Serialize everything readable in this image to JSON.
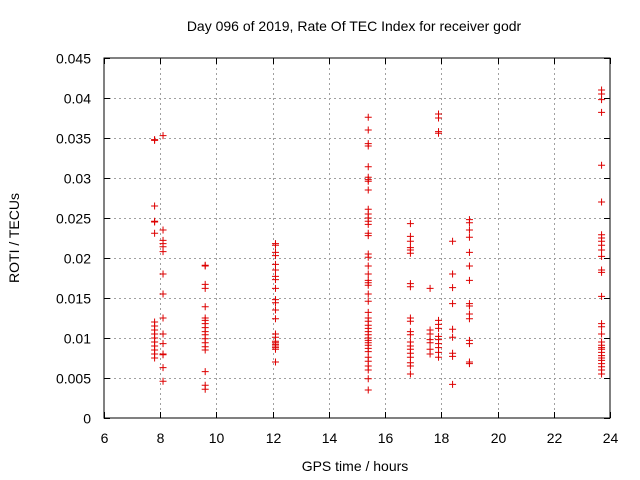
{
  "chart_data": {
    "type": "scatter",
    "title": "Day 096 of 2019, Rate Of TEC Index for receiver godr",
    "xlabel": "GPS time / hours",
    "ylabel": "ROTI / TECUs",
    "xlim": [
      6,
      24
    ],
    "ylim": [
      0,
      0.045
    ],
    "grid": true,
    "marker": "+",
    "color": "#dd0000",
    "x_ticks": [
      "6",
      "8",
      "10",
      "12",
      "14",
      "16",
      "18",
      "20",
      "22",
      "24"
    ],
    "y_ticks": [
      "0",
      "0.005",
      "0.01",
      "0.015",
      "0.02",
      "0.025",
      "0.03",
      "0.035",
      "0.04",
      "0.045"
    ],
    "points": [
      [
        7.8,
        0.0348
      ],
      [
        7.8,
        0.0347
      ],
      [
        7.8,
        0.0265
      ],
      [
        7.8,
        0.0246
      ],
      [
        7.8,
        0.0245
      ],
      [
        7.8,
        0.0231
      ],
      [
        7.8,
        0.012
      ],
      [
        7.8,
        0.0115
      ],
      [
        7.8,
        0.011
      ],
      [
        7.8,
        0.0105
      ],
      [
        7.8,
        0.01
      ],
      [
        7.8,
        0.0095
      ],
      [
        7.8,
        0.009
      ],
      [
        7.8,
        0.0085
      ],
      [
        7.8,
        0.008
      ],
      [
        7.8,
        0.0075
      ],
      [
        8.1,
        0.0353
      ],
      [
        8.1,
        0.0235
      ],
      [
        8.1,
        0.0222
      ],
      [
        8.1,
        0.0218
      ],
      [
        8.1,
        0.0214
      ],
      [
        8.1,
        0.0208
      ],
      [
        8.1,
        0.018
      ],
      [
        8.1,
        0.0155
      ],
      [
        8.1,
        0.0125
      ],
      [
        8.1,
        0.0105
      ],
      [
        8.1,
        0.0093
      ],
      [
        8.1,
        0.008
      ],
      [
        8.1,
        0.0079
      ],
      [
        8.1,
        0.0063
      ],
      [
        8.1,
        0.0046
      ],
      [
        9.6,
        0.0191
      ],
      [
        9.6,
        0.019
      ],
      [
        9.6,
        0.0167
      ],
      [
        9.6,
        0.0162
      ],
      [
        9.6,
        0.0139
      ],
      [
        9.6,
        0.0125
      ],
      [
        9.6,
        0.0122
      ],
      [
        9.6,
        0.0118
      ],
      [
        9.6,
        0.0113
      ],
      [
        9.6,
        0.0108
      ],
      [
        9.6,
        0.0104
      ],
      [
        9.6,
        0.0099
      ],
      [
        9.6,
        0.0094
      ],
      [
        9.6,
        0.0089
      ],
      [
        9.6,
        0.0085
      ],
      [
        9.6,
        0.0058
      ],
      [
        9.6,
        0.0041
      ],
      [
        9.6,
        0.0036
      ],
      [
        12.1,
        0.0218
      ],
      [
        12.1,
        0.0216
      ],
      [
        12.1,
        0.0207
      ],
      [
        12.1,
        0.0203
      ],
      [
        12.1,
        0.0192
      ],
      [
        12.1,
        0.0185
      ],
      [
        12.1,
        0.0177
      ],
      [
        12.1,
        0.0173
      ],
      [
        12.1,
        0.0162
      ],
      [
        12.1,
        0.0148
      ],
      [
        12.1,
        0.0144
      ],
      [
        12.1,
        0.0135
      ],
      [
        12.1,
        0.0124
      ],
      [
        12.1,
        0.0105
      ],
      [
        12.1,
        0.0101
      ],
      [
        12.1,
        0.0096
      ],
      [
        12.1,
        0.0094
      ],
      [
        12.1,
        0.0092
      ],
      [
        12.1,
        0.009
      ],
      [
        12.1,
        0.0088
      ],
      [
        12.1,
        0.0086
      ],
      [
        12.1,
        0.007
      ],
      [
        15.4,
        0.0376
      ],
      [
        15.4,
        0.036
      ],
      [
        15.4,
        0.0343
      ],
      [
        15.4,
        0.034
      ],
      [
        15.4,
        0.0314
      ],
      [
        15.4,
        0.0301
      ],
      [
        15.4,
        0.0298
      ],
      [
        15.4,
        0.0296
      ],
      [
        15.4,
        0.0285
      ],
      [
        15.4,
        0.0261
      ],
      [
        15.4,
        0.0255
      ],
      [
        15.4,
        0.025
      ],
      [
        15.4,
        0.0246
      ],
      [
        15.4,
        0.0242
      ],
      [
        15.4,
        0.0231
      ],
      [
        15.4,
        0.0228
      ],
      [
        15.4,
        0.0205
      ],
      [
        15.4,
        0.0201
      ],
      [
        15.4,
        0.019
      ],
      [
        15.4,
        0.018
      ],
      [
        15.4,
        0.0172
      ],
      [
        15.4,
        0.0169
      ],
      [
        15.4,
        0.0166
      ],
      [
        15.4,
        0.0155
      ],
      [
        15.4,
        0.0146
      ],
      [
        15.4,
        0.0132
      ],
      [
        15.4,
        0.0125
      ],
      [
        15.4,
        0.0121
      ],
      [
        15.4,
        0.0116
      ],
      [
        15.4,
        0.0112
      ],
      [
        15.4,
        0.0108
      ],
      [
        15.4,
        0.0104
      ],
      [
        15.4,
        0.01
      ],
      [
        15.4,
        0.0097
      ],
      [
        15.4,
        0.0094
      ],
      [
        15.4,
        0.0091
      ],
      [
        15.4,
        0.0087
      ],
      [
        15.4,
        0.0083
      ],
      [
        15.4,
        0.0076
      ],
      [
        15.4,
        0.0071
      ],
      [
        15.4,
        0.0065
      ],
      [
        15.4,
        0.006
      ],
      [
        15.4,
        0.0049
      ],
      [
        15.4,
        0.0035
      ],
      [
        16.9,
        0.0243
      ],
      [
        16.9,
        0.0227
      ],
      [
        16.9,
        0.0221
      ],
      [
        16.9,
        0.0213
      ],
      [
        16.9,
        0.021
      ],
      [
        16.9,
        0.0206
      ],
      [
        16.9,
        0.0168
      ],
      [
        16.9,
        0.0164
      ],
      [
        16.9,
        0.0125
      ],
      [
        16.9,
        0.0121
      ],
      [
        16.9,
        0.0108
      ],
      [
        16.9,
        0.0104
      ],
      [
        16.9,
        0.0095
      ],
      [
        16.9,
        0.009
      ],
      [
        16.9,
        0.0086
      ],
      [
        16.9,
        0.0081
      ],
      [
        16.9,
        0.0076
      ],
      [
        16.9,
        0.0069
      ],
      [
        16.9,
        0.0065
      ],
      [
        16.9,
        0.0055
      ],
      [
        17.6,
        0.0162
      ],
      [
        17.6,
        0.011
      ],
      [
        17.6,
        0.0105
      ],
      [
        17.6,
        0.0098
      ],
      [
        17.6,
        0.0094
      ],
      [
        17.6,
        0.0086
      ],
      [
        17.6,
        0.008
      ],
      [
        17.9,
        0.038
      ],
      [
        17.9,
        0.0375
      ],
      [
        17.9,
        0.0358
      ],
      [
        17.9,
        0.0356
      ],
      [
        17.9,
        0.0122
      ],
      [
        17.9,
        0.0117
      ],
      [
        17.9,
        0.0112
      ],
      [
        17.9,
        0.0102
      ],
      [
        17.9,
        0.0098
      ],
      [
        17.9,
        0.0093
      ],
      [
        17.9,
        0.0088
      ],
      [
        17.9,
        0.0082
      ],
      [
        17.9,
        0.0076
      ],
      [
        18.4,
        0.0221
      ],
      [
        18.4,
        0.018
      ],
      [
        18.4,
        0.0163
      ],
      [
        18.4,
        0.0143
      ],
      [
        18.4,
        0.0111
      ],
      [
        18.4,
        0.0101
      ],
      [
        18.4,
        0.0081
      ],
      [
        18.4,
        0.0077
      ],
      [
        18.4,
        0.0042
      ],
      [
        19.0,
        0.0248
      ],
      [
        19.0,
        0.0244
      ],
      [
        19.0,
        0.0235
      ],
      [
        19.0,
        0.0226
      ],
      [
        19.0,
        0.0207
      ],
      [
        19.0,
        0.019
      ],
      [
        19.0,
        0.0172
      ],
      [
        19.0,
        0.0143
      ],
      [
        19.0,
        0.014
      ],
      [
        19.0,
        0.013
      ],
      [
        19.0,
        0.0124
      ],
      [
        19.0,
        0.0097
      ],
      [
        19.0,
        0.0093
      ],
      [
        19.0,
        0.007
      ],
      [
        19.0,
        0.0068
      ],
      [
        23.7,
        0.041
      ],
      [
        23.7,
        0.0405
      ],
      [
        23.7,
        0.0398
      ],
      [
        23.7,
        0.0382
      ],
      [
        23.7,
        0.0316
      ],
      [
        23.7,
        0.027
      ],
      [
        23.7,
        0.0229
      ],
      [
        23.7,
        0.0225
      ],
      [
        23.7,
        0.0221
      ],
      [
        23.7,
        0.0216
      ],
      [
        23.7,
        0.021
      ],
      [
        23.7,
        0.0202
      ],
      [
        23.7,
        0.0185
      ],
      [
        23.7,
        0.0182
      ],
      [
        23.7,
        0.0152
      ],
      [
        23.7,
        0.0118
      ],
      [
        23.7,
        0.0114
      ],
      [
        23.7,
        0.0105
      ],
      [
        23.7,
        0.0095
      ],
      [
        23.7,
        0.0091
      ],
      [
        23.7,
        0.0088
      ],
      [
        23.7,
        0.0086
      ],
      [
        23.7,
        0.0082
      ],
      [
        23.7,
        0.0078
      ],
      [
        23.7,
        0.0075
      ],
      [
        23.7,
        0.0072
      ],
      [
        23.7,
        0.0068
      ],
      [
        23.7,
        0.0064
      ],
      [
        23.7,
        0.006
      ],
      [
        23.7,
        0.0055
      ]
    ]
  }
}
